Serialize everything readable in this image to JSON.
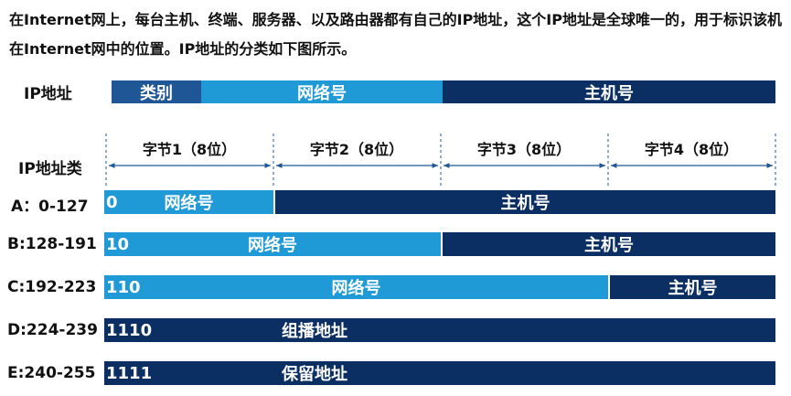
{
  "intro_text": "在Internet网上，每台主机、终端、服务器、以及路由器都有自己的IP地址，这个IP地址是全球唯一的，用于标识该机在Internet网中的位置。IP地址的分类如下图所示。",
  "ip_structure": {
    "label": "IP地址",
    "segments": [
      "类别",
      "网络号",
      "主机号"
    ]
  },
  "byte_header": {
    "label": "IP地址类",
    "bytes": [
      "字节1（8位）",
      "字节2（8位）",
      "字节3（8位）",
      "字节4（8位）"
    ]
  },
  "classes": [
    {
      "label": "A：0-127",
      "prefix": "0",
      "network_label": "网络号",
      "host_label": "主机号",
      "network_bytes": 1
    },
    {
      "label": "B:128-191",
      "prefix": "10",
      "network_label": "网络号",
      "host_label": "主机号",
      "network_bytes": 2
    },
    {
      "label": "C:192-223",
      "prefix": "110",
      "network_label": "网络号",
      "host_label": "主机号",
      "network_bytes": 3
    },
    {
      "label": "D:224-239",
      "prefix": "1110",
      "full_label": "组播地址"
    },
    {
      "label": "E:240-255",
      "prefix": "1111",
      "full_label": "保留地址"
    }
  ],
  "colors": {
    "dark_blue": "#0b2f63",
    "light_blue": "#1f9ad7",
    "mid_blue": "#1f5796",
    "guide": "#1f5796"
  }
}
